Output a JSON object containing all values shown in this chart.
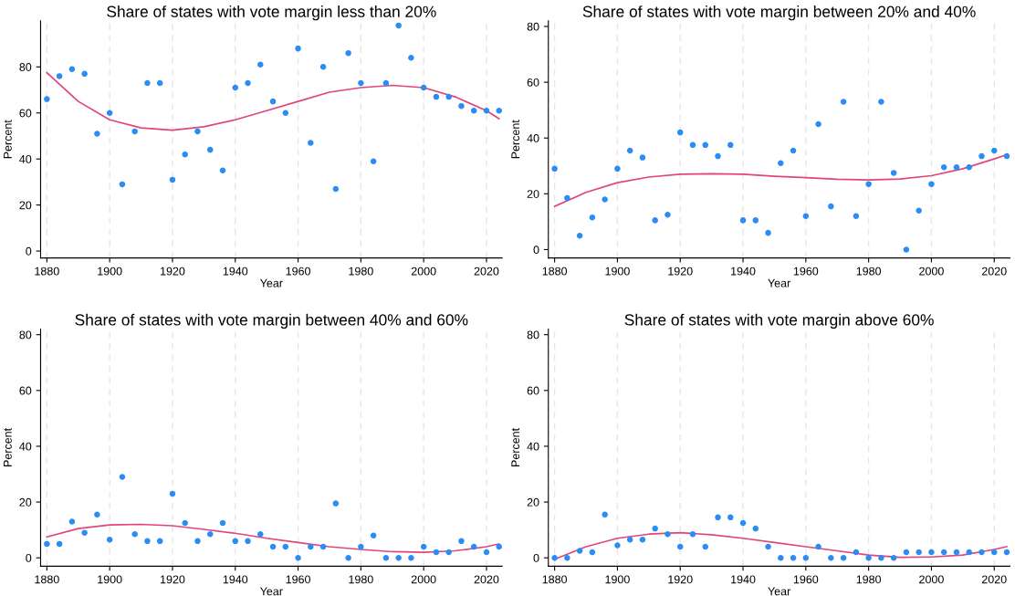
{
  "chart_data": [
    {
      "type": "scatter",
      "title": "Share of states with vote margin less than 20%",
      "xlabel": "Year",
      "ylabel": "Percent",
      "xlim": [
        1878,
        2025
      ],
      "ylim": [
        -3,
        100
      ],
      "xticks": [
        1880,
        1900,
        1920,
        1940,
        1960,
        1980,
        2000,
        2020
      ],
      "yticks": [
        0,
        20,
        40,
        60,
        80
      ],
      "grid": "x",
      "x": [
        1880,
        1884,
        1888,
        1892,
        1896,
        1900,
        1904,
        1908,
        1912,
        1916,
        1920,
        1924,
        1928,
        1932,
        1936,
        1940,
        1944,
        1948,
        1952,
        1956,
        1960,
        1964,
        1968,
        1972,
        1976,
        1980,
        1984,
        1988,
        1992,
        1996,
        2000,
        2004,
        2008,
        2012,
        2016,
        2020,
        2024
      ],
      "series": [
        {
          "marker": "circle",
          "color": "#2b8cf6",
          "values": [
            66,
            76,
            79,
            77,
            51,
            60,
            29,
            52,
            73,
            73,
            31,
            42,
            52,
            44,
            35,
            71,
            73,
            81,
            65,
            60,
            88,
            47,
            80,
            27,
            86,
            73,
            39,
            73,
            98,
            84,
            71,
            67,
            67,
            63,
            61,
            61,
            61
          ]
        },
        {
          "type": "line",
          "color": "#e0457b",
          "x": [
            1880,
            1890,
            1900,
            1910,
            1920,
            1930,
            1940,
            1950,
            1960,
            1970,
            1980,
            1990,
            2000,
            2010,
            2020,
            2024
          ],
          "values": [
            77.5,
            65,
            57,
            53.5,
            52.5,
            54,
            57,
            61,
            65,
            69,
            71,
            72,
            71,
            67,
            61,
            57.5
          ]
        }
      ]
    },
    {
      "type": "scatter",
      "title": "Share of states with vote margin between 20% and 40%",
      "xlabel": "Year",
      "ylabel": "Percent",
      "xlim": [
        1878,
        2025
      ],
      "ylim": [
        -3,
        82
      ],
      "xticks": [
        1880,
        1900,
        1920,
        1940,
        1960,
        1980,
        2000,
        2020
      ],
      "yticks": [
        0,
        20,
        40,
        60,
        80
      ],
      "grid": "x",
      "x": [
        1880,
        1884,
        1888,
        1892,
        1896,
        1900,
        1904,
        1908,
        1912,
        1916,
        1920,
        1924,
        1928,
        1932,
        1936,
        1940,
        1944,
        1948,
        1952,
        1956,
        1960,
        1964,
        1968,
        1972,
        1976,
        1980,
        1984,
        1988,
        1992,
        1996,
        2000,
        2004,
        2008,
        2012,
        2016,
        2020,
        2024
      ],
      "series": [
        {
          "marker": "circle",
          "color": "#2b8cf6",
          "values": [
            29,
            18.5,
            5,
            11.5,
            18,
            29,
            35.5,
            33,
            10.5,
            12.5,
            42,
            37.5,
            37.5,
            33.5,
            37.5,
            10.5,
            10.5,
            6,
            31,
            35.5,
            12,
            45,
            15.5,
            53,
            12,
            23.5,
            53,
            27.5,
            0,
            14,
            23.5,
            29.5,
            29.5,
            29.5,
            33.5,
            35.5,
            33.5
          ]
        },
        {
          "type": "line",
          "color": "#e0457b",
          "x": [
            1880,
            1890,
            1900,
            1910,
            1920,
            1930,
            1940,
            1950,
            1960,
            1970,
            1980,
            1990,
            2000,
            2010,
            2020,
            2024
          ],
          "values": [
            15.5,
            20.5,
            24,
            26,
            27,
            27.2,
            27,
            26.3,
            25.8,
            25.2,
            25,
            25.3,
            26.5,
            29,
            32.5,
            34
          ]
        }
      ]
    },
    {
      "type": "scatter",
      "title": "Share of states with vote margin between 40% and 60%",
      "xlabel": "Year",
      "ylabel": "Percent",
      "xlim": [
        1878,
        2025
      ],
      "ylim": [
        -3,
        82
      ],
      "xticks": [
        1880,
        1900,
        1920,
        1940,
        1960,
        1980,
        2000,
        2020
      ],
      "yticks": [
        0,
        20,
        40,
        60,
        80
      ],
      "grid": "x",
      "x": [
        1880,
        1884,
        1888,
        1892,
        1896,
        1900,
        1904,
        1908,
        1912,
        1916,
        1920,
        1924,
        1928,
        1932,
        1936,
        1940,
        1944,
        1948,
        1952,
        1956,
        1960,
        1964,
        1968,
        1972,
        1976,
        1980,
        1984,
        1988,
        1992,
        1996,
        2000,
        2004,
        2008,
        2012,
        2016,
        2020,
        2024
      ],
      "series": [
        {
          "marker": "circle",
          "color": "#2b8cf6",
          "values": [
            5,
            5,
            13,
            9,
            15.5,
            6.5,
            29,
            8.5,
            6,
            6,
            23,
            12.5,
            6,
            8.5,
            12.5,
            6,
            6,
            8.5,
            4,
            4,
            0,
            4,
            4,
            19.5,
            0,
            4,
            8,
            0,
            0,
            0,
            4,
            2,
            2,
            6,
            4,
            2,
            4
          ]
        },
        {
          "type": "line",
          "color": "#e0457b",
          "x": [
            1880,
            1890,
            1900,
            1910,
            1920,
            1930,
            1940,
            1950,
            1960,
            1970,
            1980,
            1990,
            2000,
            2010,
            2020,
            2024
          ],
          "values": [
            7.5,
            10.5,
            11.8,
            12,
            11.5,
            10.2,
            8.8,
            7,
            5.5,
            4,
            3,
            2.2,
            2,
            2.5,
            4,
            5
          ]
        }
      ]
    },
    {
      "type": "scatter",
      "title": "Share of states with vote margin above 60%",
      "xlabel": "Year",
      "ylabel": "Percent",
      "xlim": [
        1878,
        2025
      ],
      "ylim": [
        -3,
        82
      ],
      "xticks": [
        1880,
        1900,
        1920,
        1940,
        1960,
        1980,
        2000,
        2020
      ],
      "yticks": [
        0,
        20,
        40,
        60,
        80
      ],
      "grid": "x",
      "x": [
        1880,
        1884,
        1888,
        1892,
        1896,
        1900,
        1904,
        1908,
        1912,
        1916,
        1920,
        1924,
        1928,
        1932,
        1936,
        1940,
        1944,
        1948,
        1952,
        1956,
        1960,
        1964,
        1968,
        1972,
        1976,
        1980,
        1984,
        1988,
        1992,
        1996,
        2000,
        2004,
        2008,
        2012,
        2016,
        2020,
        2024
      ],
      "series": [
        {
          "marker": "circle",
          "color": "#2b8cf6",
          "values": [
            0,
            0,
            2.5,
            2,
            15.5,
            4.5,
            6.5,
            6.5,
            10.5,
            8.5,
            4,
            8.5,
            4,
            14.5,
            14.5,
            12.5,
            10.5,
            4,
            0,
            0,
            0,
            4,
            0,
            0,
            2,
            0,
            0,
            0,
            2,
            2,
            2,
            2,
            2,
            2,
            2,
            2,
            2
          ]
        },
        {
          "type": "line",
          "color": "#e0457b",
          "x": [
            1880,
            1890,
            1900,
            1910,
            1920,
            1930,
            1940,
            1950,
            1960,
            1970,
            1980,
            1990,
            2000,
            2010,
            2020,
            2024
          ],
          "values": [
            -0.5,
            4,
            7,
            8.5,
            9,
            8.3,
            7,
            5.5,
            4,
            2.5,
            1,
            0.2,
            0.3,
            1,
            3,
            4
          ]
        }
      ]
    }
  ]
}
